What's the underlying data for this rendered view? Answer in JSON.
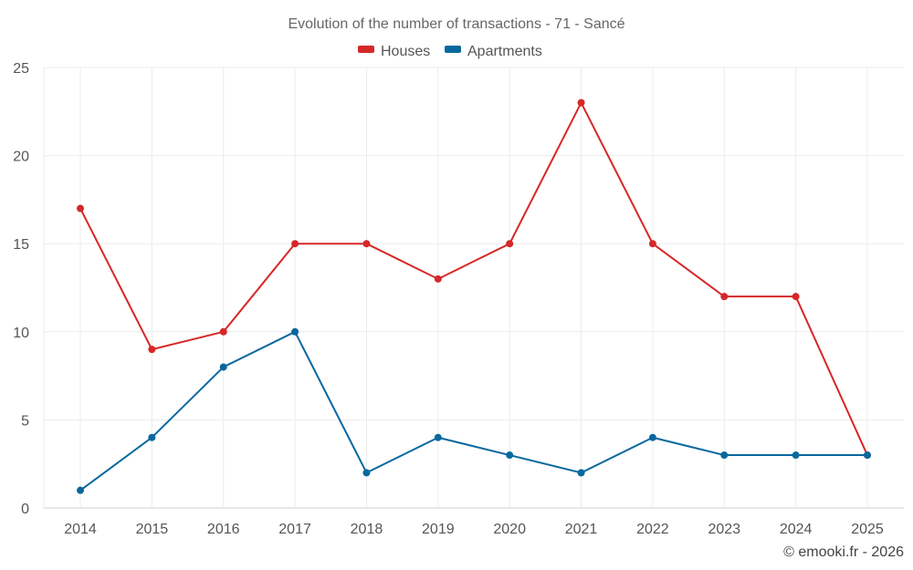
{
  "chart_data": {
    "type": "line",
    "title": "Evolution of the number of transactions - 71 - Sancé",
    "xlabel": "",
    "ylabel": "",
    "categories": [
      "2014",
      "2015",
      "2016",
      "2017",
      "2018",
      "2019",
      "2020",
      "2021",
      "2022",
      "2023",
      "2024",
      "2025"
    ],
    "ylim": [
      0,
      25
    ],
    "yticks": [
      0,
      5,
      10,
      15,
      20,
      25
    ],
    "grid": true,
    "legend_position": "top-center",
    "series": [
      {
        "name": "Houses",
        "color": "#d62728",
        "values": [
          17,
          9,
          10,
          15,
          15,
          13,
          15,
          23,
          15,
          12,
          12,
          3
        ]
      },
      {
        "name": "Apartments",
        "color": "#08689e",
        "values": [
          1,
          4,
          8,
          10,
          2,
          4,
          3,
          2,
          4,
          3,
          3,
          3
        ]
      }
    ]
  },
  "credit": "© emooki.fr - 2026"
}
